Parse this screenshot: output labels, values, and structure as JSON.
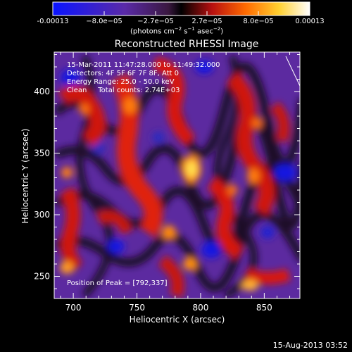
{
  "colorbar": {
    "tick_labels": [
      "-0.00013",
      "−8.0e−05",
      "−2.7e−05",
      "2.7e−05",
      "8.0e−05",
      "0.00013"
    ],
    "label_main": "(photons cm",
    "label_sup1": "−2",
    "label_mid": " s",
    "label_sup2": "−1",
    "label_end": " asec",
    "label_sup3": "−2",
    "label_close": ")"
  },
  "chart_data": {
    "type": "heatmap",
    "title": "Reconstructed RHESSI Image",
    "xlabel": "Heliocentric X (arcsec)",
    "ylabel": "Heliocentric Y (arcsec)",
    "xlim": [
      685,
      878
    ],
    "ylim": [
      232,
      432
    ],
    "x_ticks": [
      700,
      750,
      800,
      850
    ],
    "y_ticks": [
      250,
      300,
      350,
      400
    ],
    "x_tick_labels": [
      "700",
      "750",
      "800",
      "850"
    ],
    "y_tick_labels": [
      "250",
      "300",
      "350",
      "400"
    ],
    "colorscale": [
      "#0a14ff",
      "#5a2aa8",
      "#3a1840",
      "#000000",
      "#b81010",
      "#ff6a00",
      "#ffd030",
      "#ffffff"
    ],
    "peak_position": [
      792,
      337
    ],
    "annotations": [
      "15-Mar-2011 11:47:28.000 to 11:49:32.000",
      "Detectors: 4F 5F 6F 7F 8F, Att 0",
      "Energy Range: 25.0 - 50.0 keV",
      "Clean     Total counts: 2.74E+03",
      "Position of Peak = [792,337]"
    ]
  },
  "footer": {
    "timestamp": "15-Aug-2013 03:52"
  }
}
